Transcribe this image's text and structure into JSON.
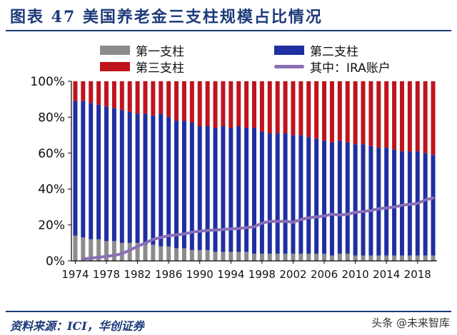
{
  "header": {
    "title": "图表 47   美国养老金三支柱规模占比情况"
  },
  "legend": {
    "items": [
      {
        "label": "第一支柱",
        "color": "#8c8c8c",
        "kind": "bar"
      },
      {
        "label": "第二支柱",
        "color": "#1f2fa0",
        "kind": "bar"
      },
      {
        "label": "第三支柱",
        "color": "#c0141c",
        "kind": "bar"
      },
      {
        "label": "其中：IRA账户",
        "color": "#8a6fb5",
        "kind": "line"
      }
    ]
  },
  "footer": {
    "source": "资料来源：ICI，华创证券",
    "watermark": "头条 @未来智库"
  },
  "chart_data": {
    "type": "bar",
    "stacked": true,
    "ylim": [
      0,
      100
    ],
    "yticks": [
      "0%",
      "20%",
      "40%",
      "60%",
      "80%",
      "100%"
    ],
    "xtick_labels": [
      "1974",
      "1978",
      "1982",
      "1986",
      "1990",
      "1994",
      "1998",
      "2002",
      "2006",
      "2010",
      "2014",
      "2018"
    ],
    "categories": [
      1974,
      1975,
      1976,
      1977,
      1978,
      1979,
      1980,
      1981,
      1982,
      1983,
      1984,
      1985,
      1986,
      1987,
      1988,
      1989,
      1990,
      1991,
      1992,
      1993,
      1994,
      1995,
      1996,
      1997,
      1998,
      1999,
      2000,
      2001,
      2002,
      2003,
      2004,
      2005,
      2006,
      2007,
      2008,
      2009,
      2010,
      2011,
      2012,
      2013,
      2014,
      2015,
      2016,
      2017,
      2018,
      2019,
      2020
    ],
    "series": [
      {
        "name": "第一支柱",
        "color": "#8c8c8c",
        "values": [
          14,
          13,
          12,
          12,
          11,
          11,
          10,
          10,
          10,
          9,
          9,
          8,
          8,
          7,
          7,
          6,
          6,
          6,
          5,
          5,
          5,
          5,
          5,
          4,
          4,
          4,
          4,
          4,
          4,
          4,
          4,
          4,
          4,
          3,
          4,
          4,
          3,
          3,
          3,
          3,
          3,
          3,
          3,
          3,
          3,
          3,
          3
        ]
      },
      {
        "name": "第二支柱",
        "color": "#1f2fa0",
        "values": [
          75,
          76,
          76,
          75,
          75,
          74,
          74,
          73,
          72,
          73,
          72,
          74,
          72,
          71,
          71,
          71,
          69,
          69,
          69,
          70,
          69,
          70,
          69,
          70,
          68,
          67,
          67,
          67,
          66,
          66,
          65,
          64,
          63,
          63,
          63,
          62,
          62,
          62,
          61,
          60,
          60,
          59,
          58,
          58,
          58,
          57,
          56
        ]
      },
      {
        "name": "第三支柱",
        "color": "#c0141c",
        "values": [
          11,
          11,
          12,
          13,
          14,
          15,
          16,
          17,
          18,
          18,
          19,
          18,
          20,
          22,
          22,
          23,
          25,
          25,
          26,
          25,
          26,
          25,
          26,
          26,
          28,
          29,
          29,
          29,
          30,
          30,
          31,
          32,
          33,
          34,
          33,
          34,
          35,
          35,
          36,
          37,
          37,
          38,
          39,
          39,
          39,
          40,
          41
        ]
      },
      {
        "name": "其中：IRA账户",
        "color": "#8a6fb5",
        "type": "line",
        "values": [
          null,
          1,
          1.5,
          2,
          2.5,
          3,
          4,
          6,
          8,
          10,
          12,
          13,
          14,
          14.5,
          15,
          16,
          16.5,
          17,
          17.2,
          17.5,
          17.8,
          18,
          18.5,
          19,
          21,
          22,
          22,
          22,
          21.5,
          23,
          24,
          24.5,
          25,
          26,
          25.5,
          26,
          27,
          27.5,
          28,
          29,
          29.5,
          30,
          31,
          31.5,
          32,
          34,
          35
        ]
      }
    ]
  }
}
